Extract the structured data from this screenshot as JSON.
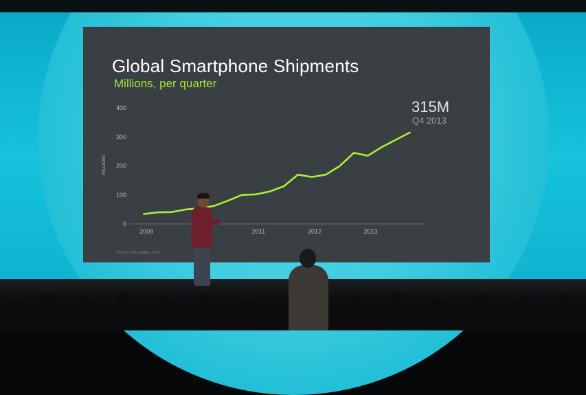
{
  "slide": {
    "title": "Global Smartphone Shipments",
    "subtitle": "Millions, per quarter",
    "callout_value": "315M",
    "callout_period": "Q4 2013",
    "source": "Sources: Mary Meeker, 2014"
  },
  "colors": {
    "slide_background": "#3a3f43",
    "line": "#a8f03c",
    "subtitle": "#a8e63a",
    "stage_backdrop": "#16c2dc"
  },
  "chart_data": {
    "type": "line",
    "title": "Global Smartphone Shipments",
    "subtitle": "Millions, per quarter",
    "ylabel": "MILLIONS",
    "xlabel": "",
    "ylim": [
      0,
      400
    ],
    "yticks": [
      "0",
      "100",
      "200",
      "300",
      "400"
    ],
    "xlim": [
      2008.75,
      2014.0
    ],
    "xticks": [
      {
        "label": "2009",
        "x": 2009
      },
      {
        "label": "2010",
        "x": 2010
      },
      {
        "label": "2011",
        "x": 2011
      },
      {
        "label": "2012",
        "x": 2012
      },
      {
        "label": "2013",
        "x": 2013
      }
    ],
    "grid": false,
    "series": [
      {
        "x": [
          2009.0,
          2009.25,
          2009.5,
          2009.75,
          2010.0,
          2010.25,
          2010.5,
          2010.75,
          2011.0,
          2011.25,
          2011.5,
          2011.75,
          2012.0,
          2012.25,
          2012.5,
          2012.75,
          2013.0,
          2013.25,
          2013.5,
          2013.75
        ],
        "values": [
          34,
          40,
          41,
          50,
          54,
          62,
          80,
          100,
          102,
          112,
          130,
          170,
          162,
          170,
          200,
          245,
          235,
          265,
          290,
          315
        ]
      }
    ],
    "annotation": {
      "text": "315M",
      "sublabel": "Q4 2013"
    }
  }
}
